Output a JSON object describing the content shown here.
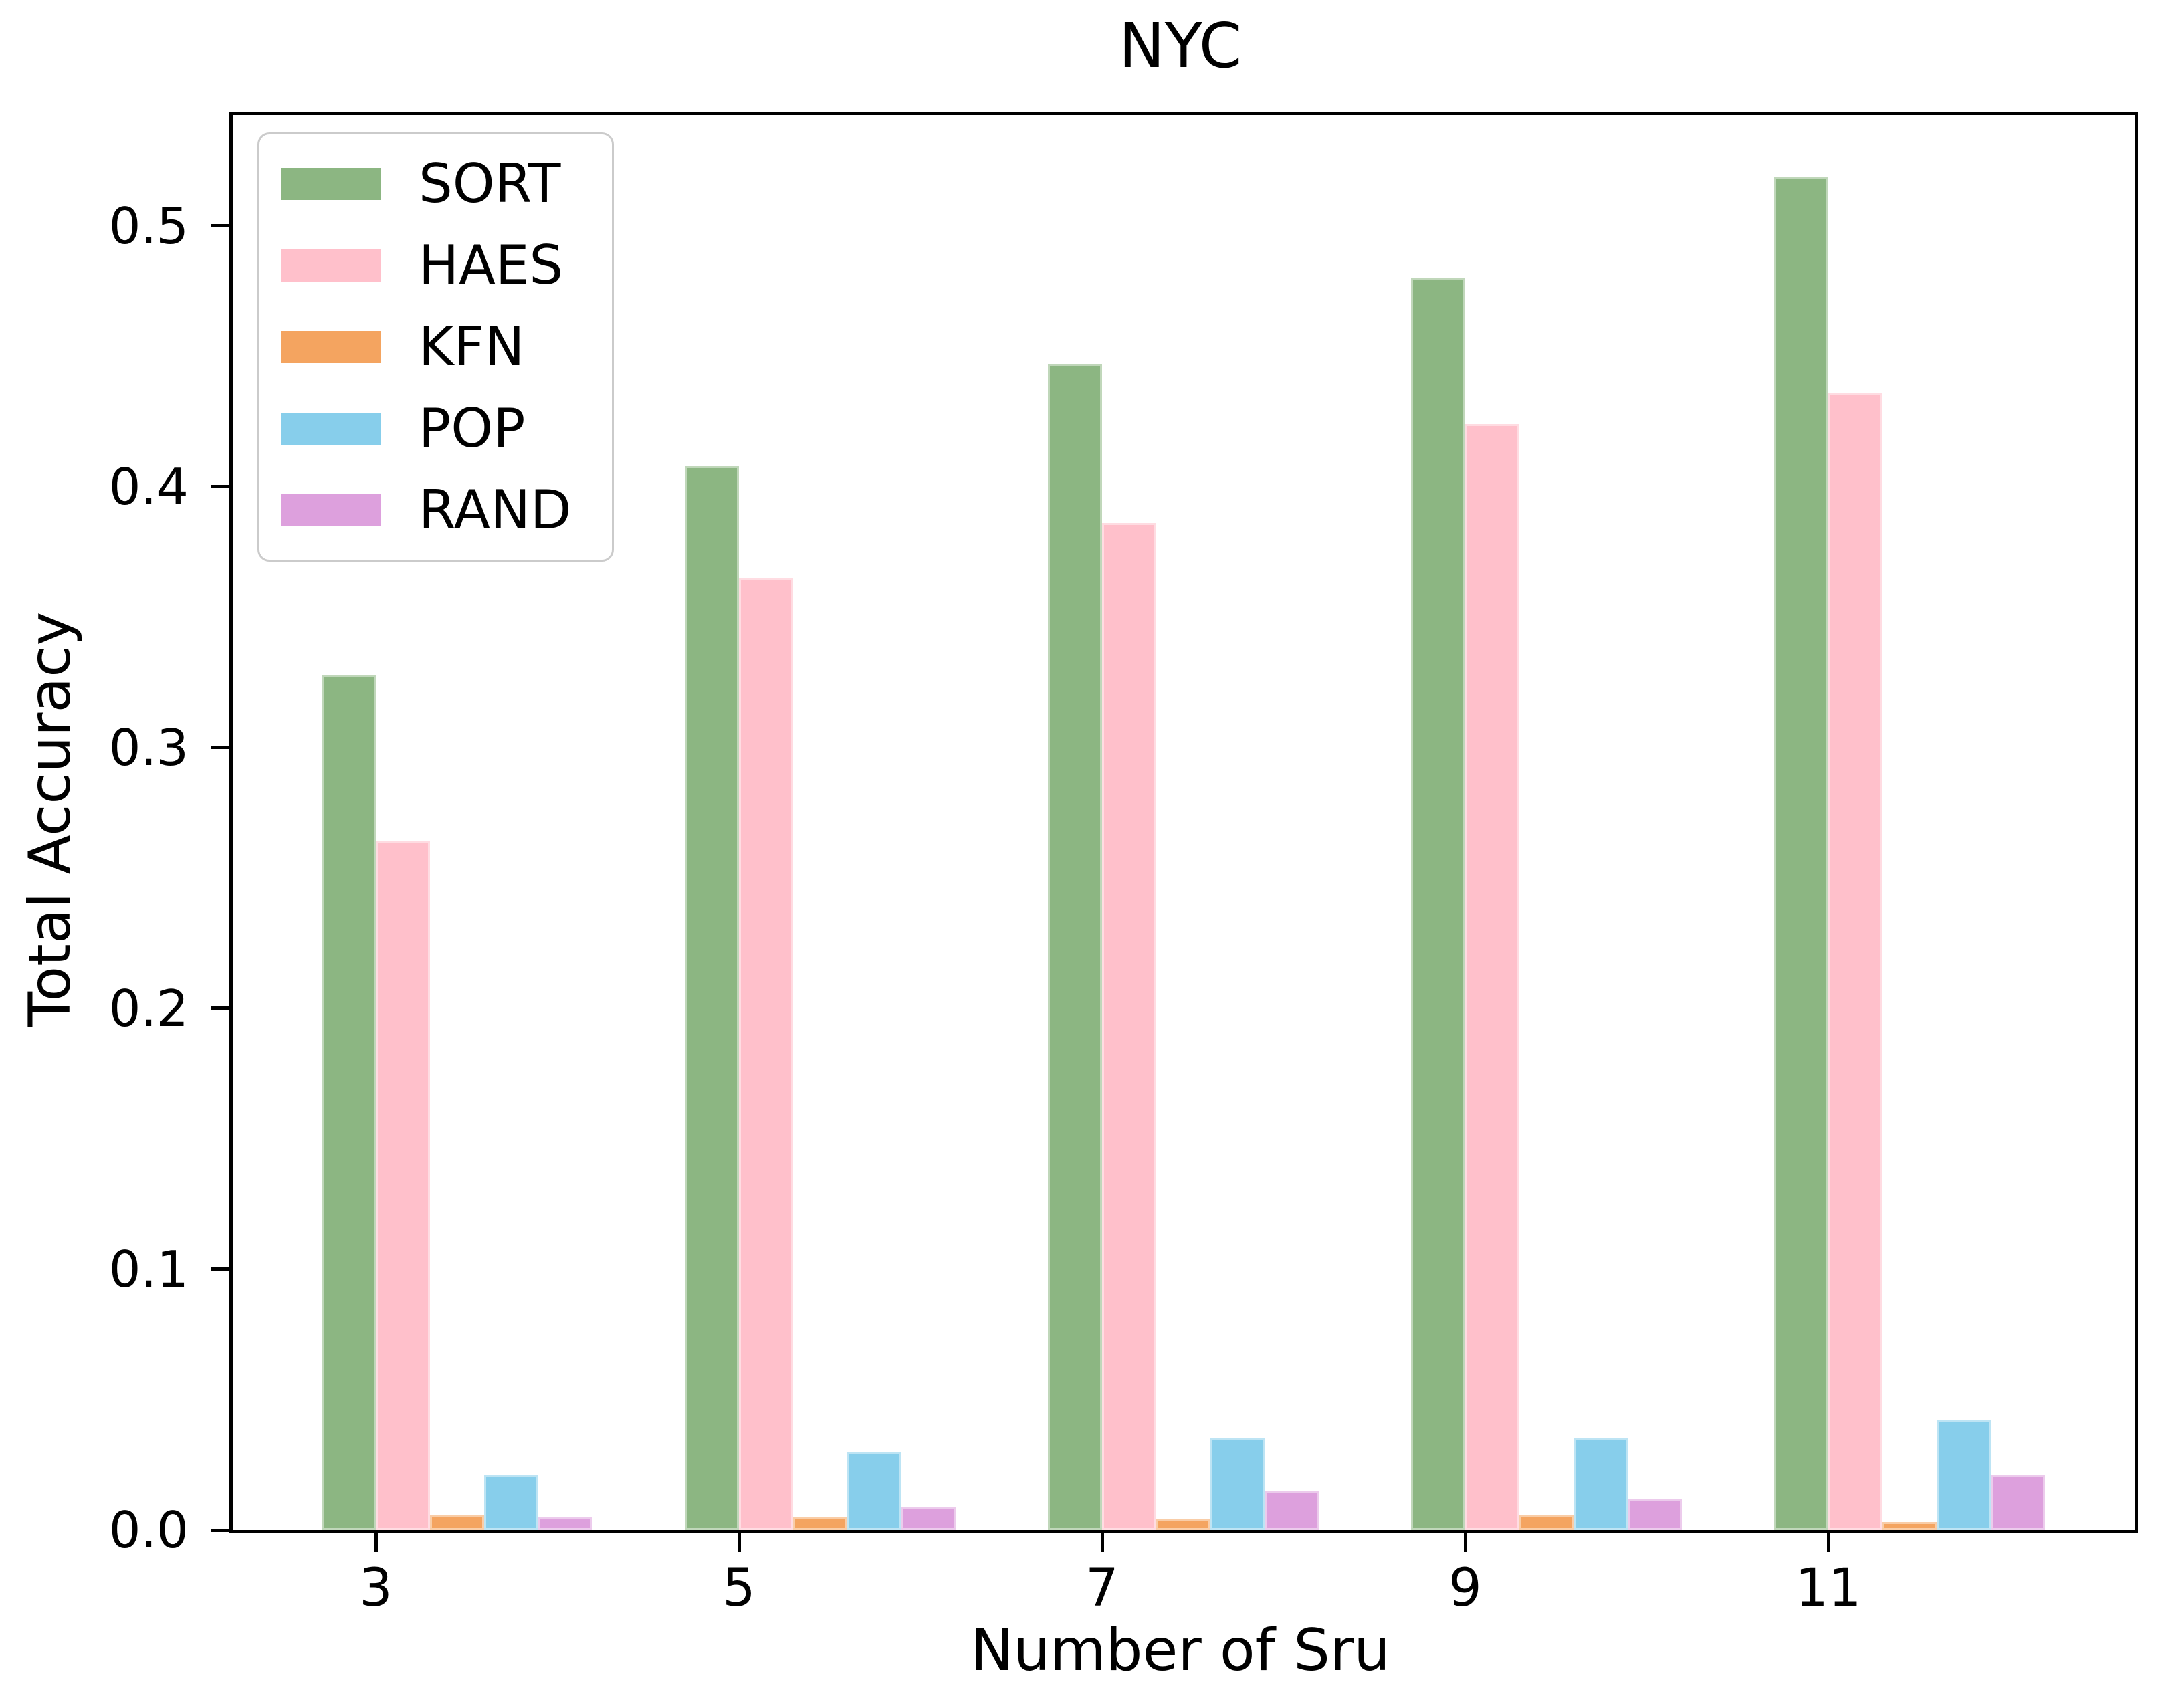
{
  "title": "NYC",
  "chart_data": {
    "type": "bar",
    "title": "NYC",
    "xlabel": "Number of Sru",
    "ylabel": "Total Accuracy",
    "categories": [
      "3",
      "5",
      "7",
      "9",
      "11"
    ],
    "series": [
      {
        "name": "SORT",
        "color": "#8cb682",
        "values": [
          0.328,
          0.408,
          0.447,
          0.48,
          0.519
        ]
      },
      {
        "name": "HAES",
        "color": "#ffc0cb",
        "values": [
          0.264,
          0.365,
          0.386,
          0.424,
          0.436
        ]
      },
      {
        "name": "KFN",
        "color": "#f4a460",
        "values": [
          0.006,
          0.005,
          0.004,
          0.006,
          0.003
        ]
      },
      {
        "name": "POP",
        "color": "#87ceeb",
        "values": [
          0.021,
          0.03,
          0.035,
          0.035,
          0.042
        ]
      },
      {
        "name": "RAND",
        "color": "#dda0dd",
        "values": [
          0.005,
          0.009,
          0.015,
          0.012,
          0.021
        ]
      }
    ],
    "ylim": [
      0,
      0.5425
    ],
    "yticks": [
      "0.0",
      "0.1",
      "0.2",
      "0.3",
      "0.4",
      "0.5"
    ],
    "grid": false,
    "legend_position": "upper left"
  }
}
